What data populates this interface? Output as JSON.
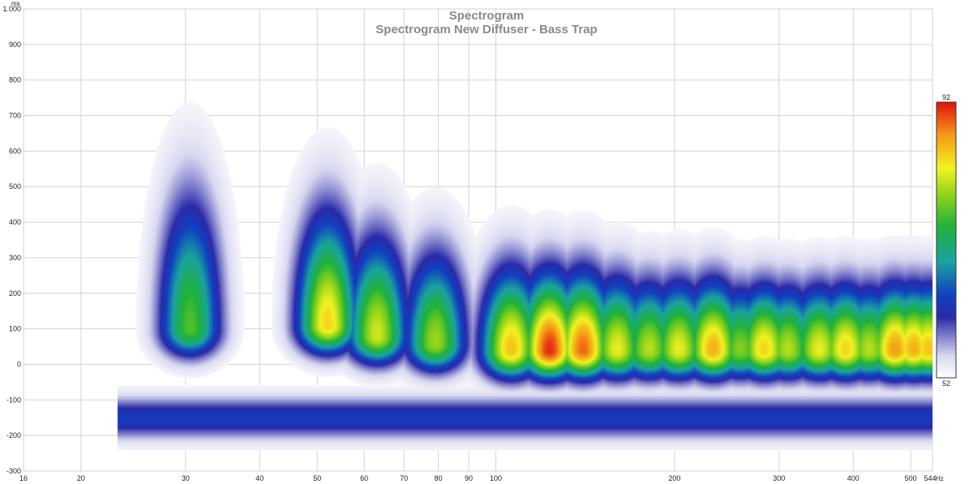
{
  "chart_data": {
    "type": "heatmap",
    "title": "Spectrogram",
    "subtitle": "Spectrogram New Diffuser - Bass Trap",
    "x_unit": "Hz",
    "y_unit": "ms",
    "x_scale": "log",
    "xlim": [
      16,
      544
    ],
    "ylim": [
      -300,
      1000
    ],
    "x_ticks": [
      16,
      20,
      30,
      40,
      50,
      60,
      70,
      80,
      90,
      100,
      200,
      300,
      400,
      500,
      544
    ],
    "x_tick_labels": [
      "16",
      "20",
      "30",
      "40",
      "50",
      "60",
      "70",
      "80",
      "90",
      "100",
      "200",
      "300",
      "400",
      "500",
      "544"
    ],
    "y_ticks": [
      -300,
      -200,
      -100,
      0,
      100,
      200,
      300,
      400,
      500,
      600,
      700,
      800,
      900,
      1000
    ],
    "y_tick_labels": [
      "-300",
      "-200",
      "-100",
      "0",
      "100",
      "200",
      "300",
      "400",
      "500",
      "600",
      "700",
      "800",
      "900",
      "1.000"
    ],
    "colorbar": {
      "min": 52,
      "max": 92,
      "min_label": "52",
      "max_label": "92"
    },
    "grid": true,
    "data_start_freq": 23,
    "peaks": [
      {
        "f": 30.5,
        "t": 100,
        "level": 76,
        "time_spread": 310
      },
      {
        "f": 52,
        "t": 110,
        "level": 84,
        "time_spread": 260
      },
      {
        "f": 63,
        "t": 80,
        "level": 81,
        "time_spread": 230
      },
      {
        "f": 79,
        "t": 60,
        "level": 79,
        "time_spread": 210
      },
      {
        "f": 106,
        "t": 40,
        "level": 85,
        "time_spread": 190
      },
      {
        "f": 123,
        "t": 40,
        "level": 91,
        "time_spread": 180
      },
      {
        "f": 140,
        "t": 40,
        "level": 89,
        "time_spread": 180
      },
      {
        "f": 160,
        "t": 40,
        "level": 82,
        "time_spread": 170
      },
      {
        "f": 181,
        "t": 40,
        "level": 80,
        "time_spread": 160
      },
      {
        "f": 203,
        "t": 40,
        "level": 82,
        "time_spread": 160
      },
      {
        "f": 232,
        "t": 40,
        "level": 86,
        "time_spread": 160
      },
      {
        "f": 258,
        "t": 40,
        "level": 78,
        "time_spread": 150
      },
      {
        "f": 283,
        "t": 40,
        "level": 84,
        "time_spread": 150
      },
      {
        "f": 310,
        "t": 40,
        "level": 80,
        "time_spread": 150
      },
      {
        "f": 350,
        "t": 40,
        "level": 82,
        "time_spread": 150
      },
      {
        "f": 388,
        "t": 40,
        "level": 84,
        "time_spread": 150
      },
      {
        "f": 425,
        "t": 40,
        "level": 80,
        "time_spread": 150
      },
      {
        "f": 470,
        "t": 40,
        "level": 87,
        "time_spread": 150
      },
      {
        "f": 505,
        "t": 40,
        "level": 86,
        "time_spread": 150
      },
      {
        "f": 535,
        "t": 40,
        "level": 85,
        "time_spread": 150
      }
    ]
  }
}
